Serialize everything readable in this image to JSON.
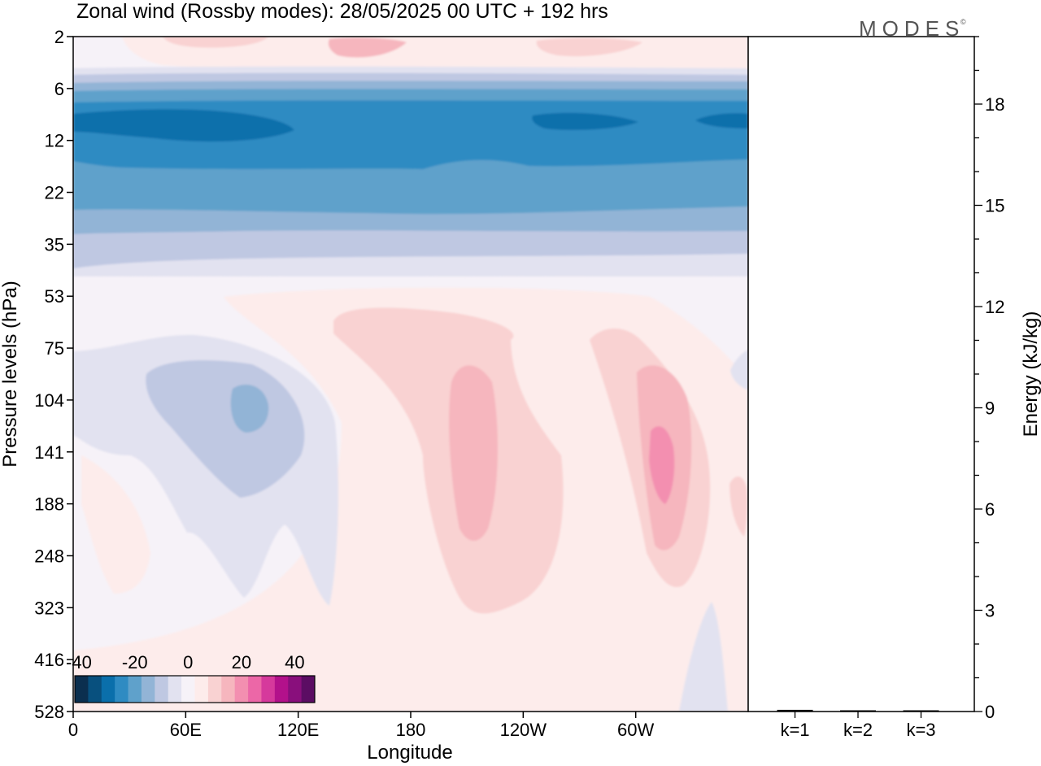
{
  "header": {
    "title": "Zonal wind (Rossby modes):  28/05/2025  00 UTC  + 192 hrs",
    "brand": "MODES",
    "brand_mark": "©"
  },
  "chart_data": [
    {
      "type": "heatmap",
      "title": "Zonal wind (Rossby modes):  28/05/2025  00 UTC  + 192 hrs",
      "xlabel": "Longitude",
      "ylabel": "Pressure levels (hPa)",
      "x_ticks": [
        "0",
        "60E",
        "120E",
        "180",
        "120W",
        "60W"
      ],
      "x_tick_degrees": [
        0,
        60,
        120,
        180,
        240,
        300
      ],
      "x_range_degrees": [
        0,
        360
      ],
      "y_ticks": [
        "2",
        "6",
        "12",
        "22",
        "35",
        "53",
        "75",
        "104",
        "141",
        "188",
        "248",
        "323",
        "416",
        "528"
      ],
      "y_scale": "model levels (top to bottom)",
      "colorbar": {
        "ticks": [
          "-40",
          "-20",
          "0",
          "20",
          "40"
        ],
        "tick_index": [
          0,
          4,
          8,
          12,
          16
        ],
        "location": "bottom-left",
        "colors": [
          "#0b2f4f",
          "#08507e",
          "#0a6fab",
          "#2f8bc2",
          "#5fa1cb",
          "#92b4d6",
          "#bfc8e2",
          "#e2e2f0",
          "#f6f2f8",
          "#fdeceb",
          "#f9d2d2",
          "#f6b6be",
          "#f38fb0",
          "#ec67a7",
          "#d6399c",
          "#b3118b",
          "#890f7c",
          "#5b0d63"
        ]
      }
    },
    {
      "type": "bar",
      "ylabel": "Energy (kJ/kg)",
      "categories": [
        "k=1",
        "k=2",
        "k=3"
      ],
      "values": [
        0.05,
        0.02,
        0.02
      ],
      "ylim": [
        0,
        20
      ],
      "y_ticks": [
        "0",
        "3",
        "6",
        "9",
        "12",
        "15",
        "18"
      ],
      "y_tick_values": [
        0,
        3,
        6,
        9,
        12,
        15,
        18
      ]
    }
  ]
}
